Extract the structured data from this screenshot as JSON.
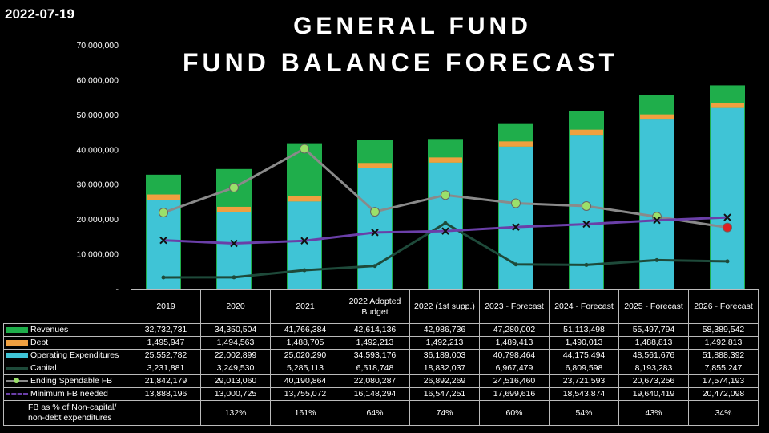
{
  "date": "2022-07-19",
  "title_line1": "GENERAL FUND",
  "title_line2": "FUND BALANCE FORECAST",
  "colors": {
    "revenues": "#1fae4b",
    "debt": "#f0a040",
    "operating": "#3fc4d6",
    "capital": "#1e4a3a",
    "ending_fb": "#8a8a8a",
    "ending_fb_marker": "#9be06a",
    "min_fb": "#6a3fa8",
    "last_point": "#e02020"
  },
  "chart_data": {
    "type": "bar",
    "ylim": [
      0,
      70000000
    ],
    "yticks": [
      "-",
      "10,000,000",
      "20,000,000",
      "30,000,000",
      "40,000,000",
      "50,000,000",
      "60,000,000",
      "70,000,000"
    ],
    "categories": [
      "2019",
      "2020",
      "2021",
      "2022 Adopted Budget",
      "2022 (1st supp.)",
      "2023 - Forecast",
      "2024 - Forecast",
      "2025 - Forecast",
      "2026 - Forecast"
    ],
    "legend_placement": "table-left",
    "series": [
      {
        "name": "Revenues",
        "kind": "bar",
        "values": [
          32732731,
          34350504,
          41766384,
          42614136,
          42986736,
          47280002,
          51113498,
          55497794,
          58389542
        ],
        "labels": [
          "32,732,731",
          "34,350,504",
          "41,766,384",
          "42,614,136",
          "42,986,736",
          "47,280,002",
          "51,113,498",
          "55,497,794",
          "58,389,542"
        ]
      },
      {
        "name": "Debt",
        "kind": "bar",
        "values": [
          1495947,
          1494563,
          1488705,
          1492213,
          1492213,
          1489413,
          1490013,
          1488813,
          1492813
        ],
        "labels": [
          "1,495,947",
          "1,494,563",
          "1,488,705",
          "1,492,213",
          "1,492,213",
          "1,489,413",
          "1,490,013",
          "1,488,813",
          "1,492,813"
        ]
      },
      {
        "name": "Operating Expenditures",
        "kind": "bar",
        "values": [
          25552782,
          22002899,
          25020290,
          34593176,
          36189003,
          40798464,
          44175494,
          48561676,
          51888392
        ],
        "labels": [
          "25,552,782",
          "22,002,899",
          "25,020,290",
          "34,593,176",
          "36,189,003",
          "40,798,464",
          "44,175,494",
          "48,561,676",
          "51,888,392"
        ]
      },
      {
        "name": "Capital",
        "kind": "line",
        "values": [
          3231881,
          3249530,
          5285113,
          6518748,
          18832037,
          6967479,
          6809598,
          8193283,
          7855247
        ],
        "labels": [
          "3,231,881",
          "3,249,530",
          "5,285,113",
          "6,518,748",
          "18,832,037",
          "6,967,479",
          "6,809,598",
          "8,193,283",
          "7,855,247"
        ]
      },
      {
        "name": "Ending Spendable FB",
        "kind": "line",
        "values": [
          21842179,
          29013060,
          40190864,
          22080287,
          26892269,
          24516460,
          23721593,
          20673256,
          17574193
        ],
        "labels": [
          "21,842,179",
          "29,013,060",
          "40,190,864",
          "22,080,287",
          "26,892,269",
          "24,516,460",
          "23,721,593",
          "20,673,256",
          "17,574,193"
        ]
      },
      {
        "name": "Minimum FB needed",
        "kind": "line",
        "values": [
          13888196,
          13000725,
          13755072,
          16148294,
          16547251,
          17699616,
          18543874,
          19640419,
          20472098
        ],
        "labels": [
          "13,888,196",
          "13,000,725",
          "13,755,072",
          "16,148,294",
          "16,547,251",
          "17,699,616",
          "18,543,874",
          "19,640,419",
          "20,472,098"
        ]
      }
    ],
    "pct_row": {
      "name": "FB as % of Non-capital/ non-debt expenditures",
      "values": [
        "",
        "132%",
        "161%",
        "64%",
        "74%",
        "60%",
        "54%",
        "43%",
        "34%"
      ]
    }
  }
}
